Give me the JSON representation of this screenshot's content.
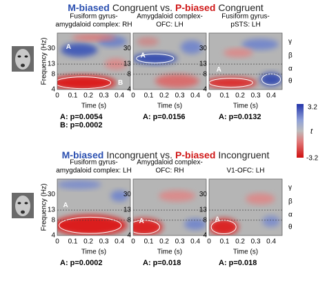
{
  "top": {
    "title": {
      "m": "M-biased",
      "mid": "Congruent vs.",
      "p": "P-biased",
      "end": "Congruent"
    },
    "panels": [
      {
        "title": [
          "Fusiform gyrus-",
          "amygdaloid complex: RH"
        ],
        "clusters": [
          "A",
          "B"
        ],
        "stats": [
          "A: p=0.0054",
          "B: p=0.0002"
        ]
      },
      {
        "title": [
          "Amygdaloid complex-",
          "OFC: LH"
        ],
        "clusters": [
          "A"
        ],
        "stats": [
          "A: p=0.0156"
        ]
      },
      {
        "title": [
          "Fusiform gyrus-",
          "pSTS: LH"
        ],
        "clusters": [
          "A"
        ],
        "stats": [
          "A: p=0.0132"
        ]
      }
    ]
  },
  "bottom": {
    "title": {
      "m": "M-biased",
      "mid": "Incongruent vs.",
      "p": "P-biased",
      "end": "Incongruent"
    },
    "panels": [
      {
        "title": [
          "Fusiform gyrus-",
          "amygdaloid complex: LH"
        ],
        "clusters": [
          "A"
        ],
        "stats": [
          "A: p=0.0002"
        ]
      },
      {
        "title": [
          "Amygdaloid complex-",
          "OFC: RH"
        ],
        "clusters": [
          "A"
        ],
        "stats": [
          "A: p=0.018"
        ]
      },
      {
        "title": [
          "V1-OFC: LH"
        ],
        "clusters": [
          "A"
        ],
        "stats": [
          "A: p=0.018"
        ]
      }
    ]
  },
  "y_axis": {
    "label": "Frequency (Hz)",
    "ticks": [
      "30",
      "13",
      "8",
      "4"
    ]
  },
  "x_axis": {
    "label": "Time (s)",
    "ticks": [
      "0",
      "0.1",
      "0.2",
      "0.3",
      "0.4"
    ]
  },
  "bands": [
    "γ",
    "β",
    "α",
    "θ"
  ],
  "colorbar": {
    "max": "3.2",
    "label": "t",
    "min": "-3.2"
  }
}
